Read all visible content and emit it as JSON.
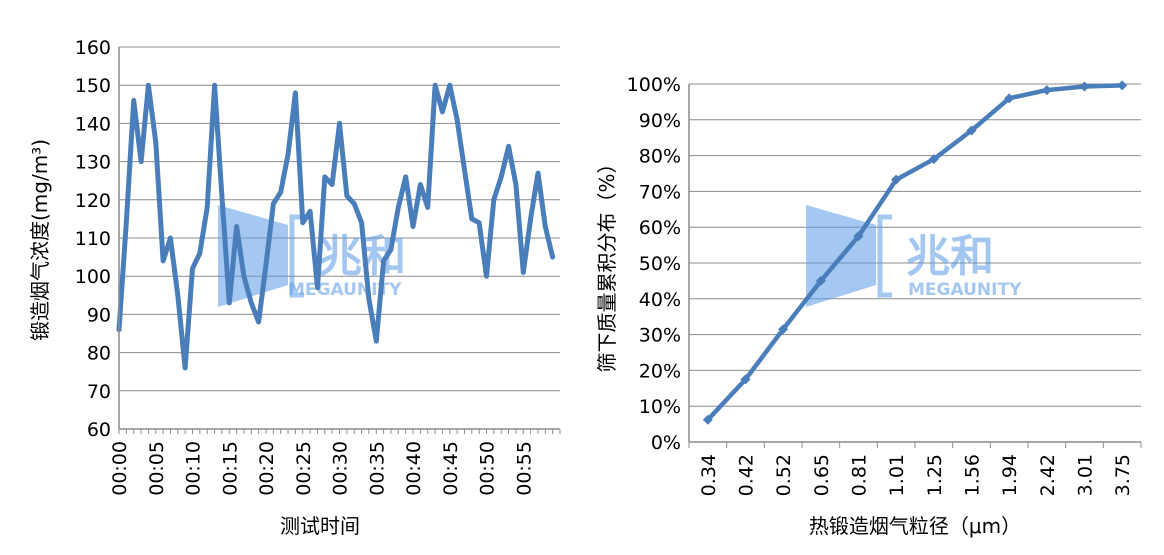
{
  "colors": {
    "line": "#4a7ebb",
    "grid": "#8c8c8c",
    "axis": "#8c8c8c",
    "watermark": "#5a9ae6"
  },
  "watermark": {
    "chinese": "兆和",
    "latin": "MEGAUNITY"
  },
  "chart_data": [
    {
      "type": "line",
      "title": "",
      "xlabel": "测试时间",
      "ylabel": "锻造烟气浓度(mg/m³)",
      "ylim": [
        60,
        160
      ],
      "yticks": [
        60,
        70,
        80,
        90,
        100,
        110,
        120,
        130,
        140,
        150,
        160
      ],
      "xticks": [
        "00:00",
        "00:05",
        "00:10",
        "00:15",
        "00:20",
        "00:25",
        "00:30",
        "00:35",
        "00:40",
        "00:45",
        "00:50",
        "00:55"
      ],
      "x_unit": "minutes",
      "xlim": [
        0,
        60
      ],
      "grid": "horizontal",
      "series": [
        {
          "x": [
            0,
            1,
            2,
            3,
            4,
            5,
            6,
            7,
            8,
            9,
            10,
            11,
            12,
            13,
            14,
            15,
            16,
            17,
            18,
            19,
            20,
            21,
            22,
            23,
            24,
            25,
            26,
            27,
            28,
            29,
            30,
            31,
            32,
            33,
            34,
            35,
            36,
            37,
            38,
            39,
            40,
            41,
            42,
            43,
            44,
            45,
            46,
            47,
            48,
            49,
            50,
            51,
            52,
            53,
            54,
            55,
            56,
            57,
            58,
            59
          ],
          "values": [
            86,
            114,
            146,
            130,
            150,
            135,
            104,
            110,
            95,
            76,
            102,
            106,
            118,
            150,
            121,
            93,
            113,
            100,
            93,
            88,
            103,
            119,
            122,
            132,
            148,
            114,
            117,
            97,
            126,
            124,
            140,
            121,
            119,
            114,
            94,
            83,
            104,
            107,
            118,
            126,
            113,
            124,
            118,
            150,
            143,
            150,
            141,
            128,
            115,
            114,
            100,
            120,
            126,
            134,
            124,
            101,
            115,
            127,
            113,
            105
          ]
        }
      ]
    },
    {
      "type": "line",
      "title": "",
      "xlabel": "热锻造烟气粒径（μm）",
      "ylabel": "筛下质量累积分布（%）",
      "ylim": [
        0,
        100
      ],
      "yticks": [
        "0%",
        "10%",
        "20%",
        "30%",
        "40%",
        "50%",
        "60%",
        "70%",
        "80%",
        "90%",
        "100%"
      ],
      "categories": [
        "0.34",
        "0.42",
        "0.52",
        "0.65",
        "0.81",
        "1.01",
        "1.25",
        "1.56",
        "1.94",
        "2.42",
        "3.01",
        "3.75"
      ],
      "grid": "horizontal",
      "markers": "diamond",
      "series": [
        {
          "values": [
            6.2,
            17.5,
            31.5,
            45,
            57.5,
            73.3,
            79,
            87,
            96,
            98.3,
            99.3,
            99.6
          ]
        }
      ]
    }
  ]
}
